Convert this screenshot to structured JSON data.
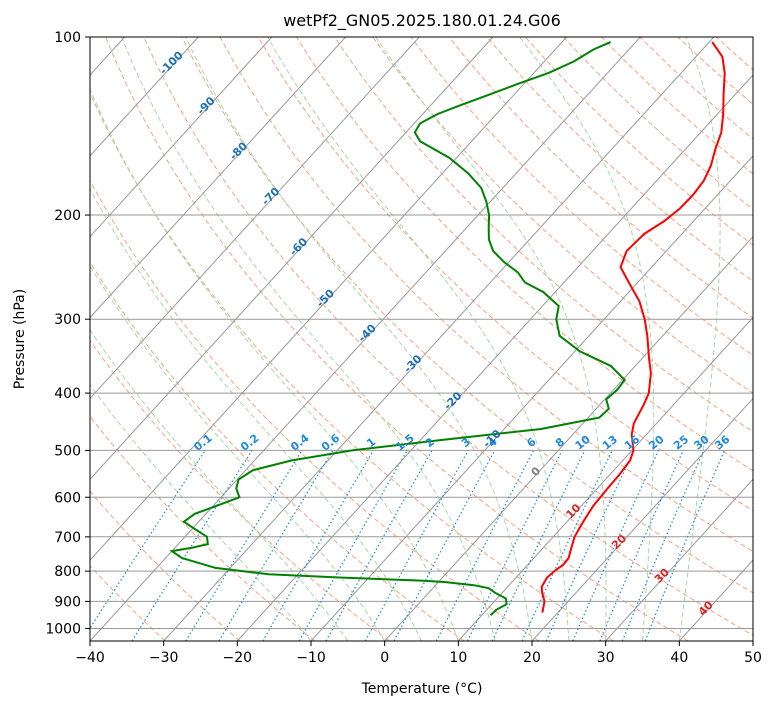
{
  "chart_data": {
    "type": "line",
    "title": "wetPf2_GN05.2025.180.01.24.G06",
    "xlabel": "Temperature (°C)",
    "ylabel": "Pressure (hPa)",
    "xlim": [
      -40,
      50
    ],
    "ylim": [
      1050,
      100
    ],
    "y_scale": "log",
    "skew": true,
    "grid": true,
    "x_ticks": [
      "−40",
      "−30",
      "−20",
      "−10",
      "0",
      "10",
      "20",
      "30",
      "40",
      "50"
    ],
    "y_ticks": [
      "100",
      "200",
      "300",
      "400",
      "500",
      "600",
      "700",
      "800",
      "900",
      "1000"
    ],
    "series": [
      {
        "color": "#ff0000",
        "p": [
          940,
          900,
          870,
          850,
          820,
          800,
          780,
          760,
          730,
          700,
          660,
          620,
          580,
          550,
          520,
          500,
          470,
          450,
          420,
          400,
          370,
          350,
          320,
          300,
          280,
          260,
          245,
          230,
          215,
          205,
          195,
          185,
          175,
          165,
          155,
          145,
          135,
          125,
          115,
          108,
          102
        ],
        "t": [
          17.9,
          16.8,
          15.4,
          14.6,
          14.2,
          14.4,
          14.8,
          14.7,
          13.8,
          12.9,
          12.2,
          11.6,
          11.4,
          11.3,
          11.0,
          10.2,
          8.0,
          6.9,
          6.0,
          5.2,
          3.0,
          1.0,
          -2.1,
          -4.5,
          -7.4,
          -11.2,
          -14.2,
          -15.4,
          -15.1,
          -14.0,
          -13.4,
          -13.3,
          -13.6,
          -14.5,
          -15.9,
          -17.2,
          -19.2,
          -21.6,
          -24.1,
          -26.4,
          -29.6
        ]
      },
      {
        "color": "#008000",
        "p": [
          950,
          930,
          910,
          890,
          870,
          855,
          845,
          835,
          830,
          820,
          810,
          790,
          760,
          740,
          730,
          720,
          700,
          680,
          660,
          640,
          620,
          600,
          580,
          560,
          540,
          520,
          500,
          480,
          460,
          440,
          425,
          410,
          395,
          380,
          360,
          340,
          320,
          300,
          285,
          270,
          260,
          250,
          240,
          230,
          220,
          210,
          200,
          190,
          180,
          170,
          160,
          150,
          145,
          140,
          135,
          130,
          125,
          120,
          115,
          110,
          105,
          102
        ],
        "t": [
          11.2,
          11.3,
          12.0,
          11.2,
          9.0,
          7.6,
          5.2,
          1.0,
          -2.5,
          -14.0,
          -24.0,
          -32.0,
          -37.8,
          -40.0,
          -37.6,
          -36.0,
          -37.0,
          -39.5,
          -42.0,
          -41.5,
          -39.5,
          -37.5,
          -39.0,
          -39.8,
          -39.0,
          -35.0,
          -28.0,
          -17.0,
          -5.0,
          1.5,
          1.7,
          0.2,
          0.5,
          0.3,
          -3.3,
          -9.3,
          -14.0,
          -16.5,
          -17.8,
          -21.6,
          -25.3,
          -27.5,
          -30.7,
          -33.5,
          -35.5,
          -37.0,
          -38.5,
          -40.5,
          -42.9,
          -46.5,
          -51.0,
          -57.0,
          -58.8,
          -59.2,
          -58.0,
          -55.8,
          -53.3,
          -50.8,
          -48.0,
          -46.0,
          -44.8,
          -43.4
        ]
      }
    ],
    "isotherm_labels": [
      "-100",
      "-90",
      "-80",
      "-70",
      "-60",
      "-50",
      "-40",
      "-30",
      "-20",
      "-10",
      "0",
      "10",
      "20",
      "30",
      "40"
    ],
    "mixing_ratio_labels": [
      "0.1",
      "0.2",
      "0.4",
      "0.6",
      "1",
      "1.5",
      "2",
      "3",
      "4",
      "6",
      "8",
      "10",
      "13",
      "16",
      "20",
      "25",
      "30",
      "36"
    ]
  },
  "colors": {
    "temperature": "#ff0000",
    "dewpoint": "#008000",
    "dry_adiabat": "#f4a582",
    "moist_adiabat": "#a6d8a6",
    "mixing_ratio": "#2288dd",
    "isotherm": "#999999",
    "isotherm_label": "#1f6fb5",
    "warm_label": "#d62728"
  }
}
